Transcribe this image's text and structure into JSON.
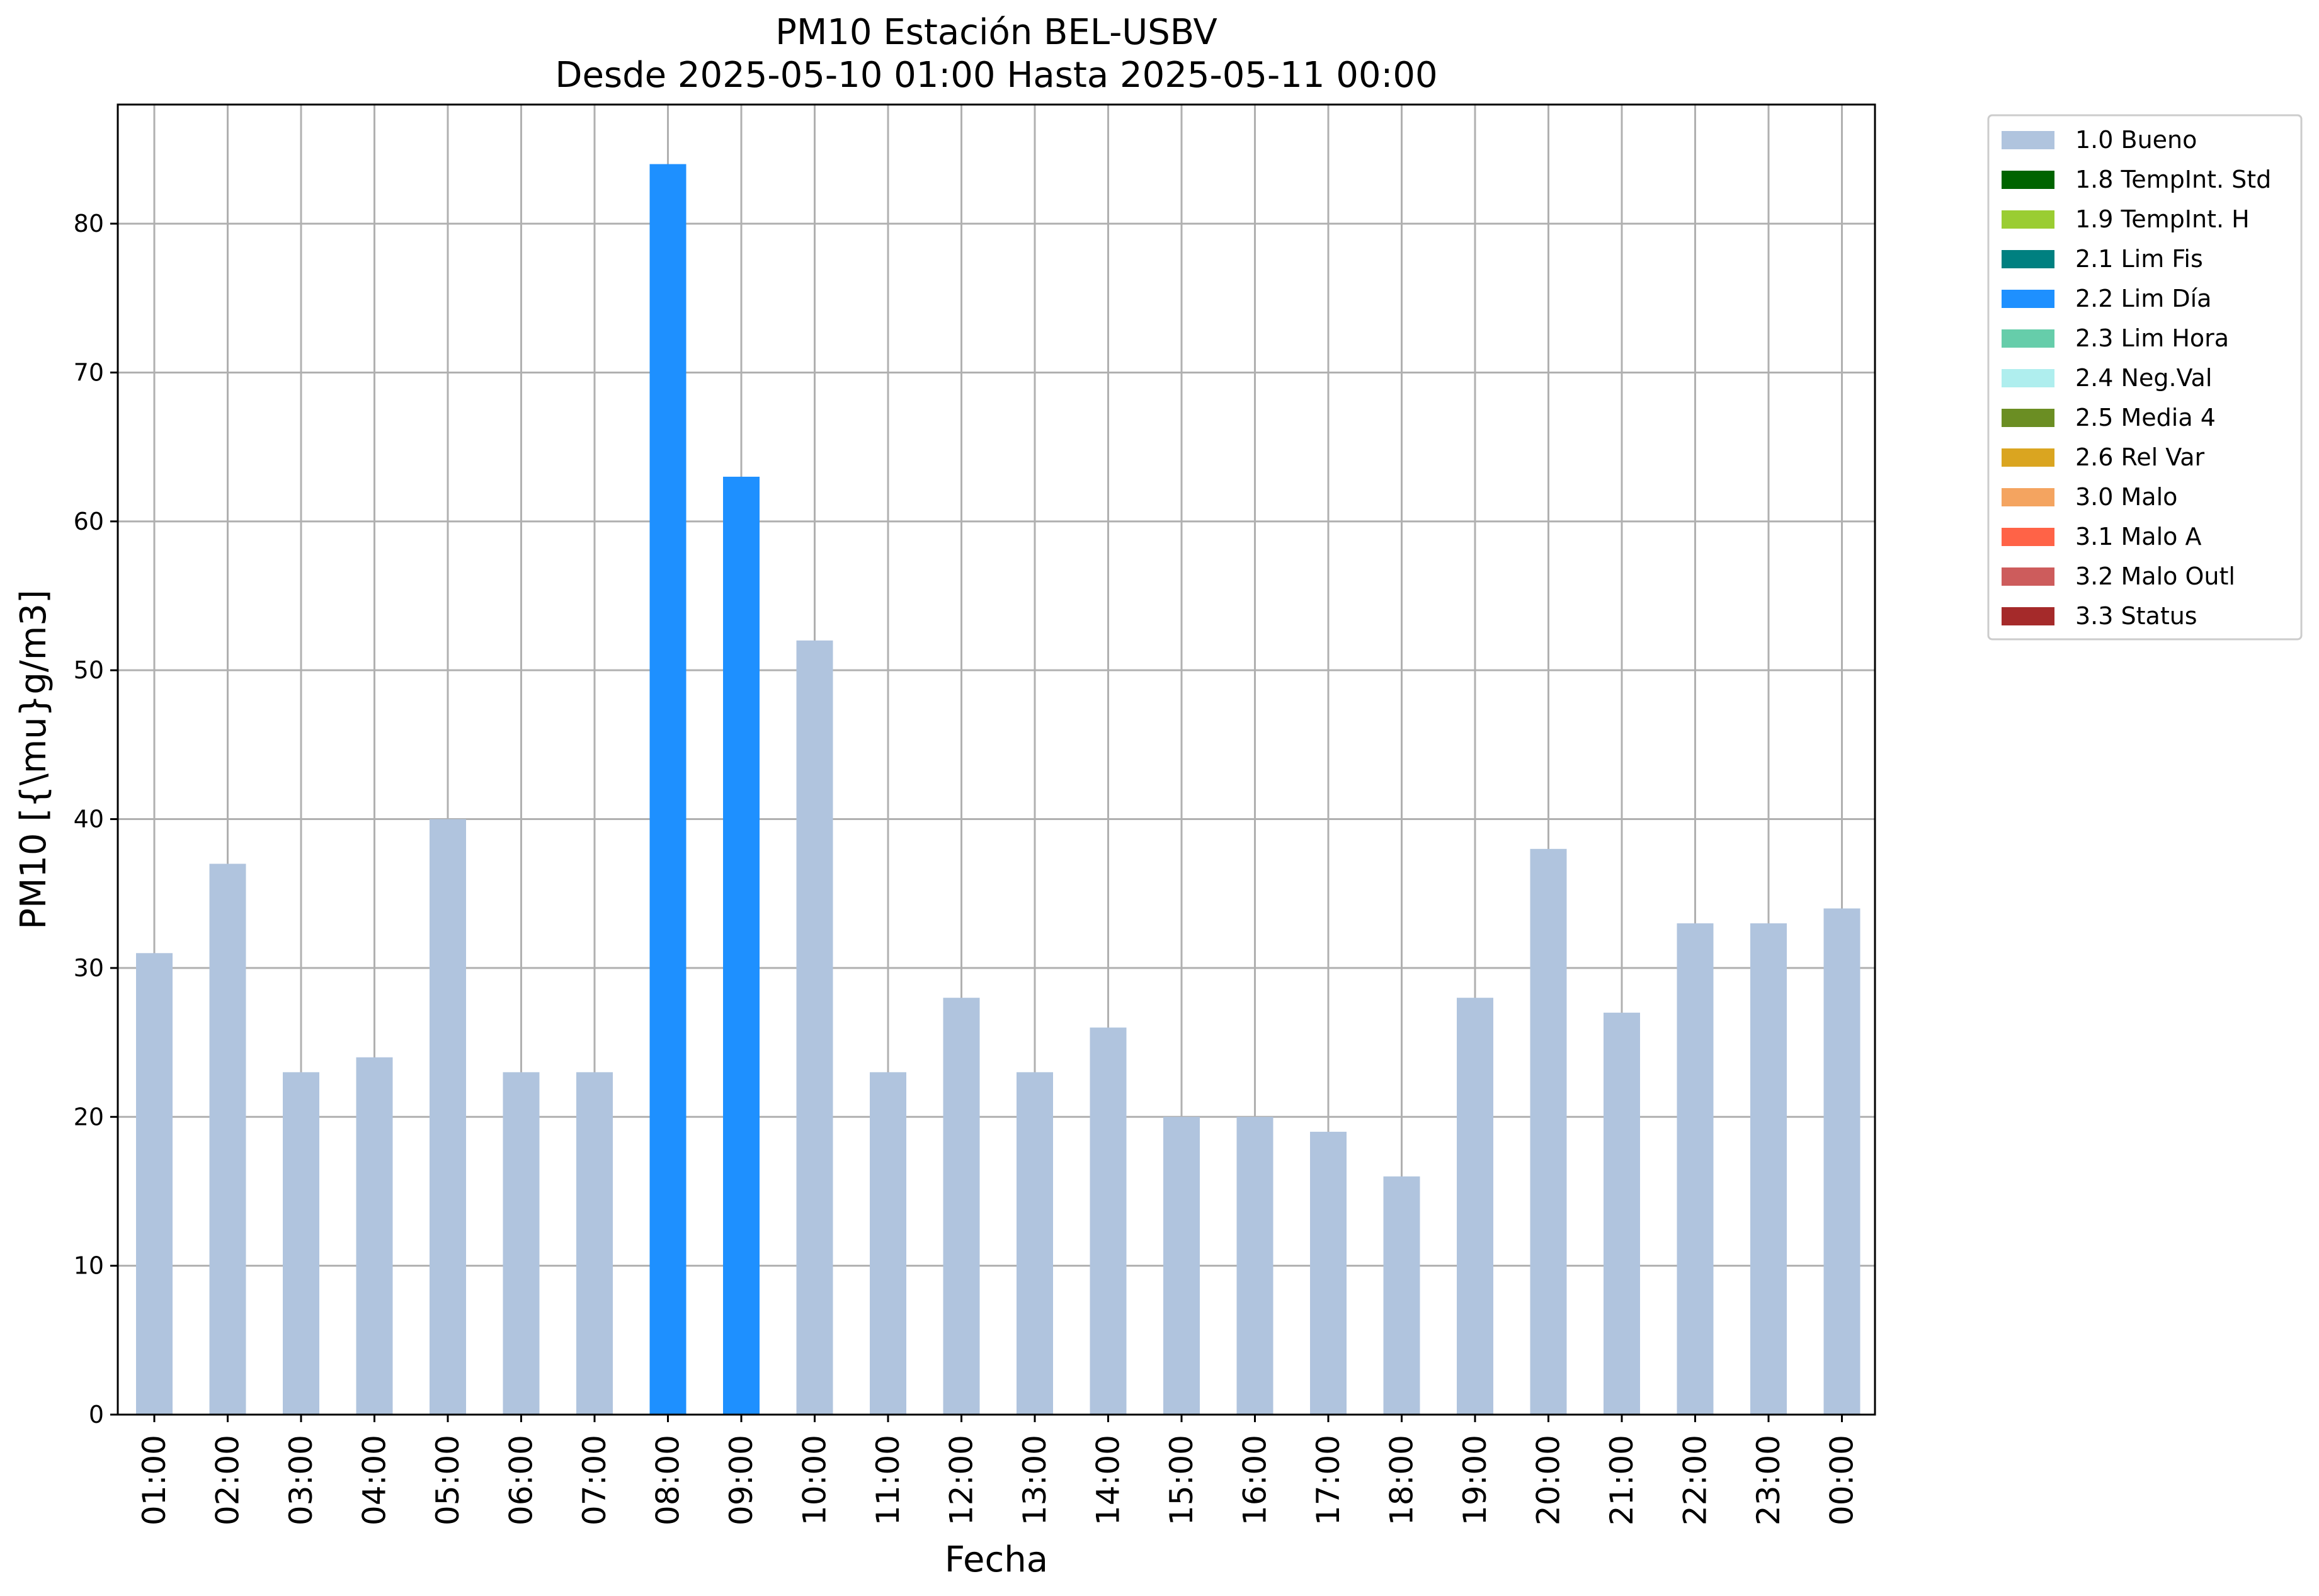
{
  "chart_data": {
    "type": "bar",
    "title": "PM10 Estación BEL-USBV",
    "subtitle": "Desde 2025-05-10 01:00 Hasta 2025-05-11 00:00",
    "xlabel": "Fecha",
    "ylabel": "PM10 [{\\mu}g/m3]",
    "ylim": [
      0,
      88
    ],
    "yticks": [
      "0",
      "10",
      "20",
      "30",
      "40",
      "50",
      "60",
      "70",
      "80"
    ],
    "grid": true,
    "legend_position": "outside-top-right",
    "categories": [
      "01:00",
      "02:00",
      "03:00",
      "04:00",
      "05:00",
      "06:00",
      "07:00",
      "08:00",
      "09:00",
      "10:00",
      "11:00",
      "12:00",
      "13:00",
      "14:00",
      "15:00",
      "16:00",
      "17:00",
      "18:00",
      "19:00",
      "20:00",
      "21:00",
      "22:00",
      "23:00",
      "00:00"
    ],
    "values": [
      31,
      37,
      23,
      24,
      40,
      23,
      23,
      84,
      63,
      52,
      23,
      28,
      23,
      26,
      20,
      20,
      19,
      16,
      28,
      38,
      27,
      33,
      33,
      34
    ],
    "flags": [
      "1.0 Bueno",
      "1.0 Bueno",
      "1.0 Bueno",
      "1.0 Bueno",
      "1.0 Bueno",
      "1.0 Bueno",
      "1.0 Bueno",
      "2.2 Lim Día",
      "2.2 Lim Día",
      "1.0 Bueno",
      "1.0 Bueno",
      "1.0 Bueno",
      "1.0 Bueno",
      "1.0 Bueno",
      "1.0 Bueno",
      "1.0 Bueno",
      "1.0 Bueno",
      "1.0 Bueno",
      "1.0 Bueno",
      "1.0 Bueno",
      "1.0 Bueno",
      "1.0 Bueno",
      "1.0 Bueno",
      "1.0 Bueno"
    ],
    "legend": [
      {
        "label": "1.0 Bueno",
        "color": "#b0c4de"
      },
      {
        "label": "1.8 TempInt. Std",
        "color": "#006400"
      },
      {
        "label": "1.9 TempInt. H",
        "color": "#9acd32"
      },
      {
        "label": "2.1 Lim Fis",
        "color": "#008080"
      },
      {
        "label": "2.2 Lim Día",
        "color": "#1e90ff"
      },
      {
        "label": "2.3 Lim Hora",
        "color": "#66cdaa"
      },
      {
        "label": "2.4 Neg.Val",
        "color": "#afeeee"
      },
      {
        "label": "2.5 Media 4",
        "color": "#6b8e23"
      },
      {
        "label": "2.6 Rel Var",
        "color": "#daa520"
      },
      {
        "label": "3.0 Malo",
        "color": "#f4a460"
      },
      {
        "label": "3.1 Malo A",
        "color": "#ff6347"
      },
      {
        "label": "3.2 Malo Outl",
        "color": "#cd5c5c"
      },
      {
        "label": "3.3 Status",
        "color": "#a52a2a"
      }
    ]
  }
}
